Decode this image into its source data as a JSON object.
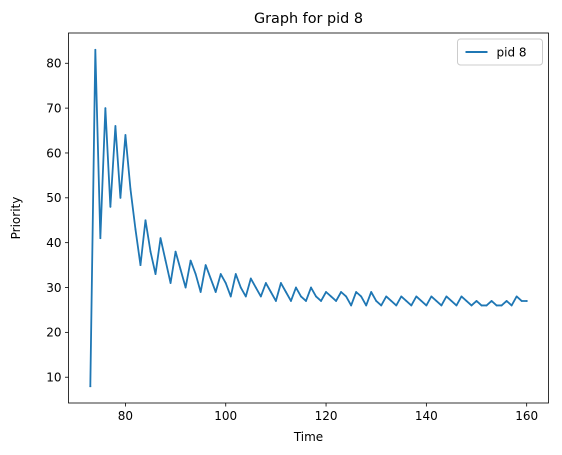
{
  "chart_data": {
    "type": "line",
    "title": "Graph for pid 8",
    "xlabel": "Time",
    "ylabel": "Priority",
    "xlim": [
      68.65,
      164.35
    ],
    "ylim": [
      4.25,
      86.75
    ],
    "xticks": [
      80,
      100,
      120,
      140,
      160
    ],
    "yticks": [
      10,
      20,
      30,
      40,
      50,
      60,
      70,
      80
    ],
    "grid": false,
    "legend_position": "upper right",
    "series": [
      {
        "name": "pid 8",
        "color": "#1f77b4",
        "x": [
          73,
          74,
          75,
          76,
          77,
          78,
          79,
          80,
          81,
          82,
          83,
          84,
          85,
          86,
          87,
          88,
          89,
          90,
          91,
          92,
          93,
          94,
          95,
          96,
          97,
          98,
          99,
          100,
          101,
          102,
          103,
          104,
          105,
          106,
          107,
          108,
          109,
          110,
          111,
          112,
          113,
          114,
          115,
          116,
          117,
          118,
          119,
          120,
          121,
          122,
          123,
          124,
          125,
          126,
          127,
          128,
          129,
          130,
          131,
          132,
          133,
          134,
          135,
          136,
          137,
          138,
          139,
          140,
          141,
          142,
          143,
          144,
          145,
          146,
          147,
          148,
          149,
          150,
          151,
          152,
          153,
          154,
          155,
          156,
          157,
          158,
          159,
          160
        ],
        "y": [
          8,
          83,
          41,
          70,
          48,
          66,
          50,
          64,
          52,
          43,
          35,
          45,
          38,
          33,
          41,
          36,
          31,
          38,
          34,
          30,
          36,
          33,
          29,
          35,
          32,
          29,
          33,
          31,
          28,
          33,
          30,
          28,
          32,
          30,
          28,
          31,
          29,
          27,
          31,
          29,
          27,
          30,
          28,
          27,
          30,
          28,
          27,
          29,
          28,
          27,
          29,
          28,
          26,
          29,
          28,
          26,
          29,
          27,
          26,
          28,
          27,
          26,
          28,
          27,
          26,
          28,
          27,
          26,
          28,
          27,
          26,
          28,
          27,
          26,
          28,
          27,
          26,
          27,
          26,
          26,
          27,
          26,
          26,
          27,
          26,
          28,
          27,
          27
        ]
      }
    ]
  }
}
